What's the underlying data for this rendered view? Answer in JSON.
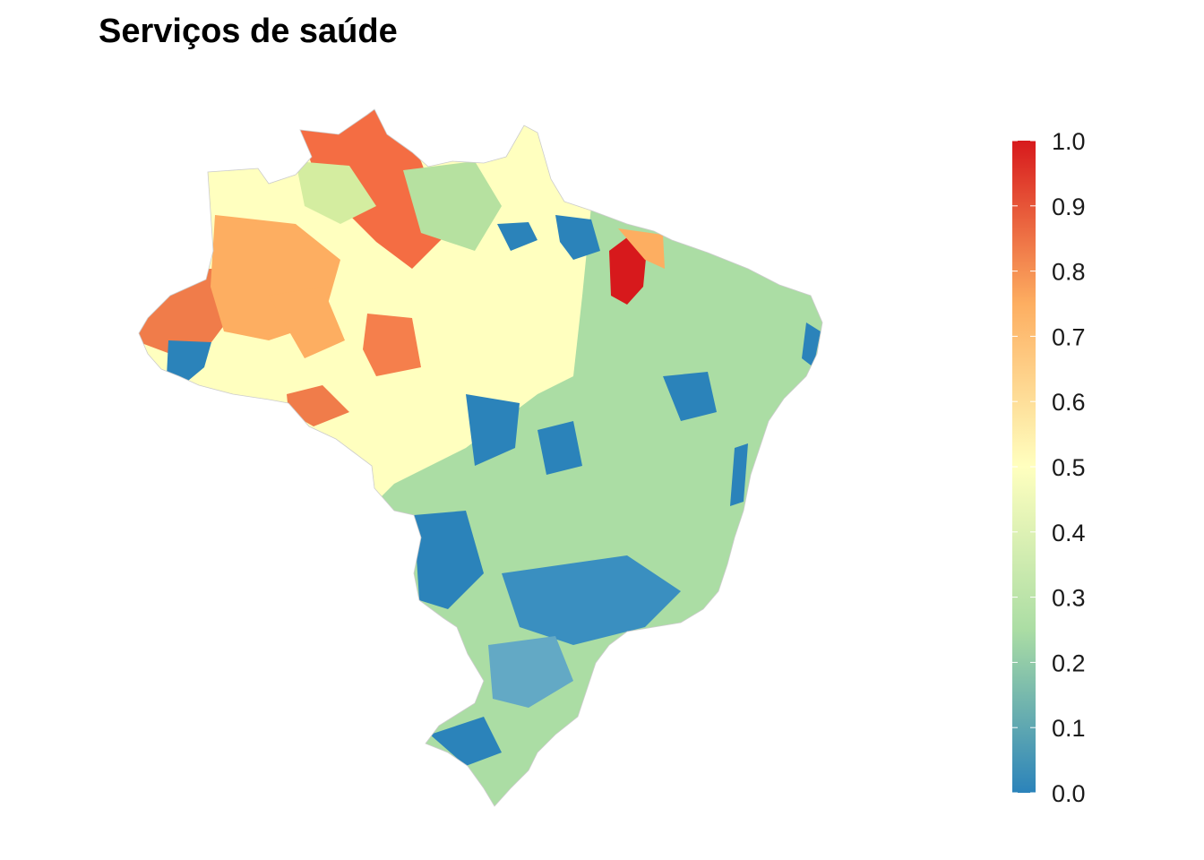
{
  "title": "Serviços de saúde",
  "legend": {
    "ticks": [
      "1.0",
      "0.9",
      "0.8",
      "0.7",
      "0.6",
      "0.5",
      "0.4",
      "0.3",
      "0.2",
      "0.1",
      "0.0"
    ],
    "palette": [
      "#2b83ba",
      "#abdda4",
      "#ffffbf",
      "#fdae61",
      "#d7191c"
    ],
    "range": [
      0,
      1
    ]
  },
  "map_data": {
    "type": "choropleth",
    "region": "Brazil municipalities",
    "palette": "Spectral (blue = 0.0, red = 1.0)",
    "dominant_values": {
      "north_amazon": "0.7–1.0 (orange/red)",
      "northeast_coast": "0.2 (green) with many 0.0 (blue)",
      "southeast_south": "0.0–0.2 (blue/green)",
      "maranhao_east": "0.9–1.0 (red)"
    }
  }
}
